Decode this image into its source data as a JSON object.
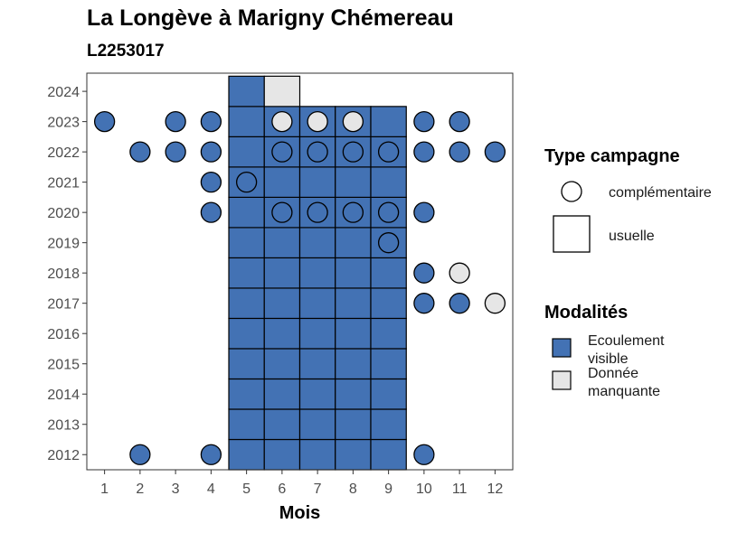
{
  "header": {
    "title": "La Longève à Marigny Chémereau",
    "subtitle": "L2253017"
  },
  "chart_data": {
    "type": "heatmap",
    "title": "La Longève à Marigny Chémereau",
    "subtitle": "L2253017",
    "xlabel": "Mois",
    "ylabel": "",
    "x_ticks": [
      "1",
      "2",
      "3",
      "4",
      "5",
      "6",
      "7",
      "8",
      "9",
      "10",
      "11",
      "12"
    ],
    "y_ticks": [
      "2012",
      "2013",
      "2014",
      "2015",
      "2016",
      "2017",
      "2018",
      "2019",
      "2020",
      "2021",
      "2022",
      "2023",
      "2024"
    ],
    "xlim": [
      0.5,
      12.5
    ],
    "ylim": [
      2011.5,
      2024.6
    ],
    "grid": false,
    "legend_position": "right",
    "colors": {
      "Ecoulement visible": "#4372b4",
      "Donnée manquante": "#e6e6e6"
    },
    "legend": {
      "shape_title": "Type campagne",
      "shape_items": [
        {
          "label": "complémentaire",
          "shape": "circle"
        },
        {
          "label": "usuelle",
          "shape": "square"
        }
      ],
      "fill_title": "Modalités",
      "fill_items": [
        {
          "label_line1": "Ecoulement",
          "label_line2": "visible",
          "key": "Ecoulement visible"
        },
        {
          "label_line1": "Donnée",
          "label_line2": "manquante",
          "key": "Donnée manquante"
        }
      ]
    },
    "usuelle": [
      {
        "month": 5,
        "year": 2012,
        "m": "Ecoulement visible"
      },
      {
        "month": 6,
        "year": 2012,
        "m": "Ecoulement visible"
      },
      {
        "month": 7,
        "year": 2012,
        "m": "Ecoulement visible"
      },
      {
        "month": 8,
        "year": 2012,
        "m": "Ecoulement visible"
      },
      {
        "month": 9,
        "year": 2012,
        "m": "Ecoulement visible"
      },
      {
        "month": 5,
        "year": 2013,
        "m": "Ecoulement visible"
      },
      {
        "month": 6,
        "year": 2013,
        "m": "Ecoulement visible"
      },
      {
        "month": 7,
        "year": 2013,
        "m": "Ecoulement visible"
      },
      {
        "month": 8,
        "year": 2013,
        "m": "Ecoulement visible"
      },
      {
        "month": 9,
        "year": 2013,
        "m": "Ecoulement visible"
      },
      {
        "month": 5,
        "year": 2014,
        "m": "Ecoulement visible"
      },
      {
        "month": 6,
        "year": 2014,
        "m": "Ecoulement visible"
      },
      {
        "month": 7,
        "year": 2014,
        "m": "Ecoulement visible"
      },
      {
        "month": 8,
        "year": 2014,
        "m": "Ecoulement visible"
      },
      {
        "month": 9,
        "year": 2014,
        "m": "Ecoulement visible"
      },
      {
        "month": 5,
        "year": 2015,
        "m": "Ecoulement visible"
      },
      {
        "month": 6,
        "year": 2015,
        "m": "Ecoulement visible"
      },
      {
        "month": 7,
        "year": 2015,
        "m": "Ecoulement visible"
      },
      {
        "month": 8,
        "year": 2015,
        "m": "Ecoulement visible"
      },
      {
        "month": 9,
        "year": 2015,
        "m": "Ecoulement visible"
      },
      {
        "month": 5,
        "year": 2016,
        "m": "Ecoulement visible"
      },
      {
        "month": 6,
        "year": 2016,
        "m": "Ecoulement visible"
      },
      {
        "month": 7,
        "year": 2016,
        "m": "Ecoulement visible"
      },
      {
        "month": 8,
        "year": 2016,
        "m": "Ecoulement visible"
      },
      {
        "month": 9,
        "year": 2016,
        "m": "Ecoulement visible"
      },
      {
        "month": 5,
        "year": 2017,
        "m": "Ecoulement visible"
      },
      {
        "month": 6,
        "year": 2017,
        "m": "Ecoulement visible"
      },
      {
        "month": 7,
        "year": 2017,
        "m": "Ecoulement visible"
      },
      {
        "month": 8,
        "year": 2017,
        "m": "Ecoulement visible"
      },
      {
        "month": 9,
        "year": 2017,
        "m": "Ecoulement visible"
      },
      {
        "month": 5,
        "year": 2018,
        "m": "Ecoulement visible"
      },
      {
        "month": 6,
        "year": 2018,
        "m": "Ecoulement visible"
      },
      {
        "month": 7,
        "year": 2018,
        "m": "Ecoulement visible"
      },
      {
        "month": 8,
        "year": 2018,
        "m": "Ecoulement visible"
      },
      {
        "month": 9,
        "year": 2018,
        "m": "Ecoulement visible"
      },
      {
        "month": 5,
        "year": 2019,
        "m": "Ecoulement visible"
      },
      {
        "month": 6,
        "year": 2019,
        "m": "Ecoulement visible"
      },
      {
        "month": 7,
        "year": 2019,
        "m": "Ecoulement visible"
      },
      {
        "month": 8,
        "year": 2019,
        "m": "Ecoulement visible"
      },
      {
        "month": 9,
        "year": 2019,
        "m": "Ecoulement visible"
      },
      {
        "month": 5,
        "year": 2020,
        "m": "Ecoulement visible"
      },
      {
        "month": 6,
        "year": 2020,
        "m": "Ecoulement visible"
      },
      {
        "month": 7,
        "year": 2020,
        "m": "Ecoulement visible"
      },
      {
        "month": 8,
        "year": 2020,
        "m": "Ecoulement visible"
      },
      {
        "month": 9,
        "year": 2020,
        "m": "Ecoulement visible"
      },
      {
        "month": 5,
        "year": 2021,
        "m": "Ecoulement visible"
      },
      {
        "month": 6,
        "year": 2021,
        "m": "Ecoulement visible"
      },
      {
        "month": 7,
        "year": 2021,
        "m": "Ecoulement visible"
      },
      {
        "month": 8,
        "year": 2021,
        "m": "Ecoulement visible"
      },
      {
        "month": 9,
        "year": 2021,
        "m": "Ecoulement visible"
      },
      {
        "month": 5,
        "year": 2022,
        "m": "Ecoulement visible"
      },
      {
        "month": 6,
        "year": 2022,
        "m": "Ecoulement visible"
      },
      {
        "month": 7,
        "year": 2022,
        "m": "Ecoulement visible"
      },
      {
        "month": 8,
        "year": 2022,
        "m": "Ecoulement visible"
      },
      {
        "month": 9,
        "year": 2022,
        "m": "Ecoulement visible"
      },
      {
        "month": 5,
        "year": 2023,
        "m": "Ecoulement visible"
      },
      {
        "month": 6,
        "year": 2023,
        "m": "Ecoulement visible"
      },
      {
        "month": 7,
        "year": 2023,
        "m": "Ecoulement visible"
      },
      {
        "month": 8,
        "year": 2023,
        "m": "Ecoulement visible"
      },
      {
        "month": 9,
        "year": 2023,
        "m": "Ecoulement visible"
      },
      {
        "month": 5,
        "year": 2024,
        "m": "Ecoulement visible"
      },
      {
        "month": 6,
        "year": 2024,
        "m": "Donnée manquante"
      }
    ],
    "complementaire": [
      {
        "month": 2,
        "year": 2012,
        "m": "Ecoulement visible"
      },
      {
        "month": 4,
        "year": 2012,
        "m": "Ecoulement visible"
      },
      {
        "month": 10,
        "year": 2012,
        "m": "Ecoulement visible"
      },
      {
        "month": 10,
        "year": 2017,
        "m": "Ecoulement visible"
      },
      {
        "month": 11,
        "year": 2017,
        "m": "Ecoulement visible"
      },
      {
        "month": 12,
        "year": 2017,
        "m": "Donnée manquante"
      },
      {
        "month": 10,
        "year": 2018,
        "m": "Ecoulement visible"
      },
      {
        "month": 11,
        "year": 2018,
        "m": "Donnée manquante"
      },
      {
        "month": 9,
        "year": 2019,
        "m": "Ecoulement visible"
      },
      {
        "month": 4,
        "year": 2020,
        "m": "Ecoulement visible"
      },
      {
        "month": 6,
        "year": 2020,
        "m": "Ecoulement visible"
      },
      {
        "month": 7,
        "year": 2020,
        "m": "Ecoulement visible"
      },
      {
        "month": 8,
        "year": 2020,
        "m": "Ecoulement visible"
      },
      {
        "month": 9,
        "year": 2020,
        "m": "Ecoulement visible"
      },
      {
        "month": 10,
        "year": 2020,
        "m": "Ecoulement visible"
      },
      {
        "month": 4,
        "year": 2021,
        "m": "Ecoulement visible"
      },
      {
        "month": 5,
        "year": 2021,
        "m": "Ecoulement visible"
      },
      {
        "month": 2,
        "year": 2022,
        "m": "Ecoulement visible"
      },
      {
        "month": 3,
        "year": 2022,
        "m": "Ecoulement visible"
      },
      {
        "month": 4,
        "year": 2022,
        "m": "Ecoulement visible"
      },
      {
        "month": 6,
        "year": 2022,
        "m": "Ecoulement visible"
      },
      {
        "month": 7,
        "year": 2022,
        "m": "Ecoulement visible"
      },
      {
        "month": 8,
        "year": 2022,
        "m": "Ecoulement visible"
      },
      {
        "month": 9,
        "year": 2022,
        "m": "Ecoulement visible"
      },
      {
        "month": 10,
        "year": 2022,
        "m": "Ecoulement visible"
      },
      {
        "month": 11,
        "year": 2022,
        "m": "Ecoulement visible"
      },
      {
        "month": 12,
        "year": 2022,
        "m": "Ecoulement visible"
      },
      {
        "month": 1,
        "year": 2023,
        "m": "Ecoulement visible"
      },
      {
        "month": 3,
        "year": 2023,
        "m": "Ecoulement visible"
      },
      {
        "month": 4,
        "year": 2023,
        "m": "Ecoulement visible"
      },
      {
        "month": 6,
        "year": 2023,
        "m": "Donnée manquante"
      },
      {
        "month": 7,
        "year": 2023,
        "m": "Donnée manquante"
      },
      {
        "month": 8,
        "year": 2023,
        "m": "Donnée manquante"
      },
      {
        "month": 10,
        "year": 2023,
        "m": "Ecoulement visible"
      },
      {
        "month": 11,
        "year": 2023,
        "m": "Ecoulement visible"
      }
    ]
  }
}
